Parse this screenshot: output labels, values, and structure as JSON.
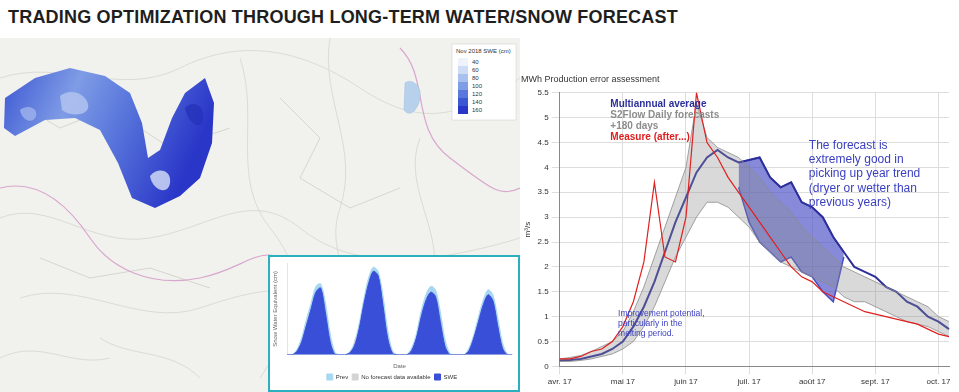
{
  "title": "TRADING OPTIMIZATION THROUGH LONG-TERM WATER/SNOW FORECAST",
  "map": {
    "legend_title": "Nov 2018 SWE (cm)",
    "legend_values": [
      40,
      60,
      80,
      100,
      120,
      140,
      160
    ],
    "legend_colors": [
      "#eef3fb",
      "#cfdcf5",
      "#a9c0ee",
      "#7f9ce6",
      "#5a78dc",
      "#3c57d2",
      "#2a36c8"
    ]
  },
  "chart_data": [
    {
      "type": "area",
      "x_label": "Date",
      "y_label": "Snow Water Equivalent (cm)",
      "categories": [
        null,
        null,
        null,
        null,
        null,
        null,
        null,
        null,
        null,
        null,
        null,
        null,
        null,
        null,
        null,
        null,
        null,
        null,
        null,
        null,
        null,
        null,
        null,
        null,
        null,
        null,
        null,
        null,
        null,
        null,
        null,
        null,
        null,
        null,
        null,
        null,
        null,
        null,
        null,
        null,
        null,
        null,
        null,
        null,
        null,
        null,
        null,
        null
      ],
      "series": [
        {
          "name": "Prev",
          "color": "#a8d8f0",
          "values": [
            0,
            0,
            6,
            20,
            42,
            62,
            82,
            85,
            62,
            25,
            3,
            0,
            0,
            3,
            14,
            36,
            66,
            92,
            105,
            100,
            72,
            30,
            5,
            0,
            0,
            0,
            8,
            25,
            52,
            72,
            82,
            78,
            52,
            18,
            2,
            0,
            0,
            0,
            8,
            24,
            46,
            66,
            78,
            72,
            45,
            15,
            1,
            0
          ]
        },
        {
          "name": "No forecast data available",
          "color": "#d4d4d4",
          "values": [
            null,
            null,
            null,
            null,
            null,
            null,
            null,
            null,
            null,
            null,
            null,
            null,
            null,
            null,
            18,
            18,
            18,
            18,
            18,
            18,
            null,
            null,
            null,
            null,
            null,
            null,
            null,
            null,
            null,
            null,
            null,
            null,
            null,
            null,
            null,
            null,
            null,
            null,
            null,
            null,
            null,
            null,
            null,
            null,
            null,
            null,
            null,
            null
          ]
        },
        {
          "name": "SWE",
          "color": "#3a4fd8",
          "values": [
            0,
            0,
            4,
            15,
            35,
            55,
            75,
            80,
            50,
            15,
            0,
            0,
            0,
            2,
            10,
            30,
            60,
            85,
            100,
            95,
            60,
            20,
            2,
            0,
            0,
            0,
            5,
            20,
            45,
            65,
            75,
            70,
            40,
            10,
            0,
            0,
            0,
            0,
            5,
            20,
            40,
            60,
            72,
            65,
            35,
            8,
            0,
            0
          ]
        }
      ],
      "ylim": [
        0,
        110
      ],
      "tick_labels": false,
      "grid": false,
      "legend": "bottom"
    },
    {
      "type": "line",
      "title": "MWh Production error assessment",
      "y_label": "m³/s",
      "categories": [
        "avr. 17",
        null,
        null,
        null,
        null,
        null,
        "mai 17",
        null,
        null,
        null,
        null,
        null,
        "juin 17",
        null,
        null,
        null,
        null,
        null,
        "juil. 17",
        null,
        null,
        null,
        null,
        null,
        "août 17",
        null,
        null,
        null,
        null,
        null,
        "sept. 17",
        null,
        null,
        null,
        null,
        null,
        "oct. 17",
        null
      ],
      "series": [
        {
          "name": "Multiannual average",
          "color": "#2d2f9a",
          "values": [
            0.12,
            0.13,
            0.15,
            0.2,
            0.25,
            0.35,
            0.5,
            0.8,
            1.2,
            1.7,
            2.3,
            2.9,
            3.4,
            3.9,
            4.2,
            4.35,
            4.2,
            4.1,
            4.15,
            4.2,
            3.8,
            3.6,
            3.7,
            3.3,
            3.2,
            3.0,
            2.6,
            2.3,
            2.0,
            1.9,
            1.8,
            1.6,
            1.5,
            1.3,
            1.2,
            1.0,
            0.9,
            0.75
          ]
        },
        {
          "name": "S2Flow Daily forecasts +180 days",
          "color": "#8c8c8c",
          "type": "band",
          "low": [
            0.1,
            0.1,
            0.12,
            0.15,
            0.2,
            0.25,
            0.35,
            0.5,
            0.8,
            1.2,
            1.7,
            2.2,
            2.6,
            3.0,
            3.3,
            3.3,
            3.2,
            3.0,
            2.8,
            2.5,
            2.3,
            2.1,
            2.0,
            1.9,
            1.8,
            1.7,
            1.6,
            1.4,
            1.3,
            1.3,
            1.2,
            1.1,
            1.0,
            0.9,
            0.85,
            0.8,
            0.7,
            0.6
          ],
          "high": [
            0.15,
            0.18,
            0.22,
            0.3,
            0.4,
            0.5,
            0.7,
            1.1,
            1.6,
            2.2,
            2.8,
            3.4,
            4.0,
            5.3,
            4.6,
            4.4,
            4.3,
            4.2,
            4.0,
            3.8,
            3.5,
            3.3,
            3.1,
            2.8,
            2.6,
            2.4,
            2.2,
            2.0,
            1.9,
            1.8,
            1.7,
            1.6,
            1.5,
            1.4,
            1.3,
            1.2,
            1.0,
            0.9
          ]
        },
        {
          "name": "Measure (after...)",
          "color": "#e02020",
          "values": [
            0.15,
            0.15,
            0.2,
            0.3,
            0.35,
            0.5,
            0.8,
            1.3,
            2.1,
            3.7,
            2.2,
            2.1,
            3.0,
            5.5,
            4.5,
            4.2,
            3.8,
            3.5,
            3.2,
            2.9,
            2.6,
            2.3,
            2.0,
            1.8,
            1.7,
            1.5,
            1.4,
            1.3,
            1.2,
            1.1,
            1.05,
            1.0,
            0.95,
            0.9,
            0.85,
            0.75,
            0.65,
            0.6
          ]
        }
      ],
      "highlight": {
        "color": "#4a4fc4",
        "low": [
          null,
          null,
          null,
          null,
          null,
          null,
          null,
          null,
          null,
          null,
          null,
          null,
          null,
          null,
          null,
          null,
          null,
          3.6,
          2.9,
          2.5,
          2.3,
          2.1,
          2.2,
          1.9,
          1.8,
          1.5,
          1.3,
          2.2,
          null,
          null,
          null,
          null,
          null,
          null,
          null,
          null,
          null,
          null
        ],
        "high": [
          null,
          null,
          null,
          null,
          null,
          null,
          null,
          null,
          null,
          null,
          null,
          null,
          null,
          null,
          null,
          null,
          null,
          4.1,
          4.15,
          4.2,
          3.8,
          3.6,
          3.7,
          3.3,
          3.2,
          3.0,
          2.6,
          2.3,
          null,
          null,
          null,
          null,
          null,
          null,
          null,
          null,
          null,
          null
        ]
      },
      "annotations": [
        "The forecast is extremely good in picking up year trend (dryer or wetter than previous years)",
        "Improvement potential, particularly in the melting period."
      ],
      "ylim": [
        0,
        5.5
      ],
      "yticks": [
        0,
        0.5,
        1,
        1.5,
        2,
        2.5,
        3,
        3.5,
        4,
        4.5,
        5,
        5.5
      ],
      "grid": true,
      "legend": "top-left"
    }
  ]
}
